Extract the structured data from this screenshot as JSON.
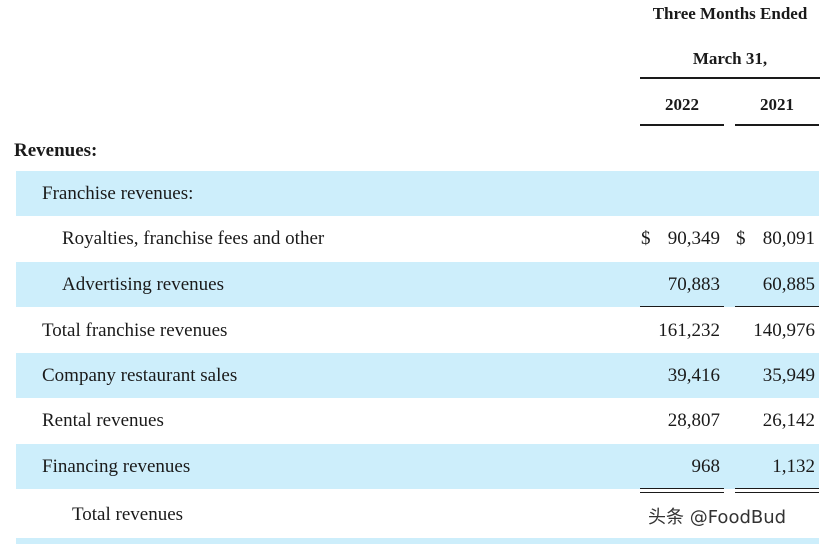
{
  "header": {
    "period_line1": "Three Months Ended",
    "period_line2": "March 31,",
    "year_current": "2022",
    "year_prior": "2021"
  },
  "section_title": "Revenues:",
  "rows": [
    {
      "label": "Franchise revenues:",
      "current": "",
      "prior": "",
      "shaded": true
    },
    {
      "label": "Royalties, franchise fees and other",
      "currency": "$",
      "current": "90,349",
      "prior": "80,091",
      "shaded": false
    },
    {
      "label": "Advertising revenues",
      "current": "70,883",
      "prior": "60,885",
      "shaded": true
    },
    {
      "label": "Total franchise revenues",
      "current": "161,232",
      "prior": "140,976",
      "shaded": false
    },
    {
      "label": "Company restaurant sales",
      "current": "39,416",
      "prior": "35,949",
      "shaded": true
    },
    {
      "label": "Rental revenues",
      "current": "28,807",
      "prior": "26,142",
      "shaded": false
    },
    {
      "label": "Financing revenues",
      "current": "968",
      "prior": "1,132",
      "shaded": true
    },
    {
      "label": "Total revenues",
      "current": "",
      "prior": "",
      "shaded": false
    }
  ],
  "watermark": "头条 @FoodBud",
  "colors": {
    "row_shade": "#cdeefb",
    "text": "#1a1a1a"
  }
}
